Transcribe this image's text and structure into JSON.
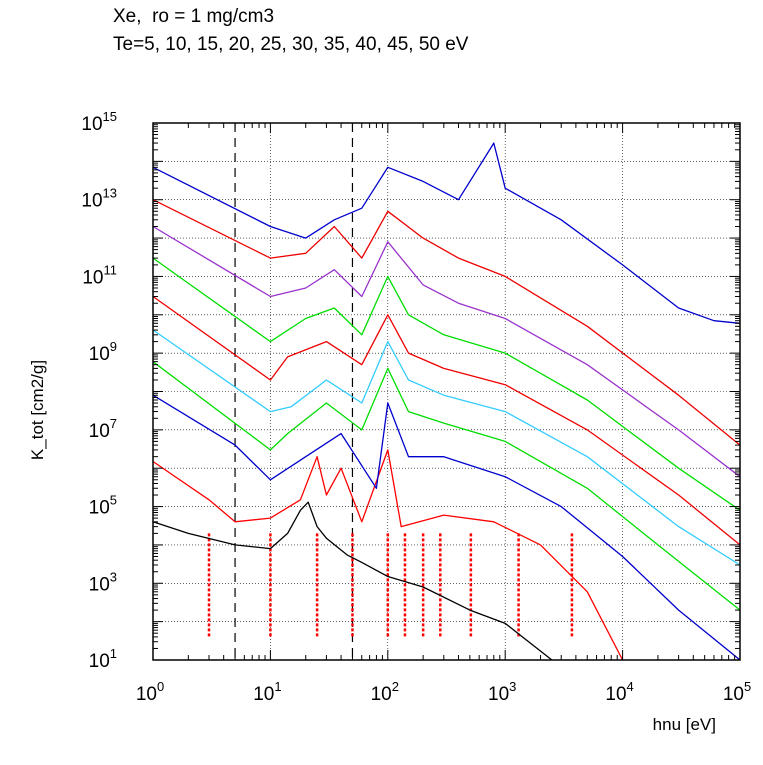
{
  "chart_data": {
    "type": "line",
    "title_lines": [
      "Xe,  ro = 1 mg/cm3",
      "Te=5, 10, 15, 20, 25, 30, 35, 40, 45, 50 eV"
    ],
    "xlabel": "hnu [eV]",
    "ylabel": "K_tot [cm2/g]",
    "xscale": "log",
    "yscale": "log",
    "xlim": [
      1,
      100000
    ],
    "ylim": [
      10,
      1000000000000000.0
    ],
    "x_tick_labels": [
      {
        "base": "10",
        "exp": "0",
        "value": 1
      },
      {
        "base": "10",
        "exp": "1",
        "value": 10
      },
      {
        "base": "10",
        "exp": "2",
        "value": 100
      },
      {
        "base": "10",
        "exp": "3",
        "value": 1000
      },
      {
        "base": "10",
        "exp": "4",
        "value": 10000
      },
      {
        "base": "10",
        "exp": "5",
        "value": 100000
      }
    ],
    "y_tick_labels": [
      {
        "base": "10",
        "exp": "1",
        "value": 10
      },
      {
        "base": "10",
        "exp": "3",
        "value": 1000
      },
      {
        "base": "10",
        "exp": "5",
        "value": 100000
      },
      {
        "base": "10",
        "exp": "7",
        "value": 10000000
      },
      {
        "base": "10",
        "exp": "9",
        "value": 1000000000
      },
      {
        "base": "10",
        "exp": "11",
        "value": 100000000000
      },
      {
        "base": "10",
        "exp": "13",
        "value": 10000000000000
      },
      {
        "base": "10",
        "exp": "15",
        "value": 1000000000000000
      }
    ],
    "grid": true,
    "dashed_vertical_lines_x": [
      5,
      50
    ],
    "dotted_red_vertical_lines_x": [
      3,
      10,
      25,
      50,
      100,
      140,
      200,
      280,
      510,
      1300,
      3700
    ],
    "dotted_red_lines_y_range": [
      40,
      20000
    ],
    "series": [
      {
        "color": "#000000",
        "values": [
          [
            1,
            40000
          ],
          [
            2,
            20000
          ],
          [
            5,
            10000
          ],
          [
            10,
            8000
          ],
          [
            14,
            20000
          ],
          [
            18,
            80000
          ],
          [
            21,
            130000
          ],
          [
            25,
            30000
          ],
          [
            30,
            15000
          ],
          [
            45,
            5500
          ],
          [
            60,
            3500
          ],
          [
            100,
            1500
          ],
          [
            200,
            800
          ],
          [
            500,
            200
          ],
          [
            1000,
            90
          ],
          [
            2500,
            10
          ]
        ]
      },
      {
        "color": "#ff0000",
        "values": [
          [
            1,
            1500000
          ],
          [
            3,
            150000
          ],
          [
            5,
            40000
          ],
          [
            10,
            50000
          ],
          [
            18,
            150000
          ],
          [
            25,
            2000000
          ],
          [
            30,
            200000
          ],
          [
            40,
            1000000
          ],
          [
            60,
            40000
          ],
          [
            100,
            3000000
          ],
          [
            130,
            30000
          ],
          [
            300,
            60000
          ],
          [
            800,
            40000
          ],
          [
            2000,
            10000
          ],
          [
            5000,
            600
          ],
          [
            10000,
            10
          ]
        ]
      },
      {
        "color": "#0000cc",
        "values": [
          [
            1,
            80000000
          ],
          [
            5,
            4000000
          ],
          [
            10,
            500000
          ],
          [
            20,
            2000000
          ],
          [
            40,
            8000000
          ],
          [
            80,
            300000
          ],
          [
            100,
            50000000
          ],
          [
            150,
            2000000
          ],
          [
            300,
            2000000
          ],
          [
            1000,
            600000
          ],
          [
            3000,
            100000
          ],
          [
            10000,
            5000
          ],
          [
            30000,
            200
          ],
          [
            100000,
            10
          ]
        ]
      },
      {
        "color": "#00dd00",
        "values": [
          [
            1,
            600000000
          ],
          [
            10,
            3000000
          ],
          [
            14,
            8000000
          ],
          [
            30,
            50000000
          ],
          [
            60,
            10000000
          ],
          [
            100,
            400000000
          ],
          [
            150,
            30000000
          ],
          [
            300,
            15000000
          ],
          [
            1000,
            5000000
          ],
          [
            5000,
            300000
          ],
          [
            20000,
            10000
          ],
          [
            100000,
            200
          ]
        ]
      },
      {
        "color": "#33ccff",
        "values": [
          [
            1,
            4000000000
          ],
          [
            10,
            30000000
          ],
          [
            15,
            40000000
          ],
          [
            30,
            200000000
          ],
          [
            60,
            50000000
          ],
          [
            100,
            2000000000
          ],
          [
            150,
            200000000
          ],
          [
            300,
            80000000
          ],
          [
            1000,
            30000000
          ],
          [
            5000,
            2000000
          ],
          [
            30000,
            30000
          ],
          [
            100000,
            3000
          ]
        ]
      },
      {
        "color": "#ee0000",
        "values": [
          [
            1,
            30000000000
          ],
          [
            10,
            200000000
          ],
          [
            14,
            800000000
          ],
          [
            30,
            2000000000
          ],
          [
            60,
            500000000
          ],
          [
            100,
            10000000000
          ],
          [
            150,
            1000000000
          ],
          [
            300,
            400000000
          ],
          [
            1000,
            150000000
          ],
          [
            5000,
            10000000
          ],
          [
            30000,
            200000
          ],
          [
            100000,
            10000
          ]
        ]
      },
      {
        "color": "#00dd00",
        "values": [
          [
            1,
            300000000000
          ],
          [
            10,
            2000000000
          ],
          [
            20,
            8000000000
          ],
          [
            35,
            15000000000
          ],
          [
            60,
            3000000000
          ],
          [
            100,
            100000000000
          ],
          [
            150,
            10000000000
          ],
          [
            300,
            3000000000
          ],
          [
            1000,
            1000000000
          ],
          [
            5000,
            60000000
          ],
          [
            30000,
            1000000
          ],
          [
            100000,
            80000
          ]
        ]
      },
      {
        "color": "#9933cc",
        "values": [
          [
            1,
            2000000000000
          ],
          [
            10,
            30000000000
          ],
          [
            20,
            50000000000
          ],
          [
            35,
            150000000000
          ],
          [
            60,
            30000000000
          ],
          [
            100,
            800000000000
          ],
          [
            200,
            60000000000
          ],
          [
            400,
            20000000000
          ],
          [
            1000,
            8000000000
          ],
          [
            5000,
            500000000
          ],
          [
            30000,
            10000000
          ],
          [
            100000,
            600000
          ]
        ]
      },
      {
        "color": "#ee0000",
        "values": [
          [
            1,
            10000000000000
          ],
          [
            10,
            300000000000
          ],
          [
            20,
            400000000000
          ],
          [
            35,
            2000000000000
          ],
          [
            60,
            300000000000
          ],
          [
            100,
            5000000000000
          ],
          [
            200,
            1000000000000
          ],
          [
            400,
            300000000000
          ],
          [
            1000,
            100000000000
          ],
          [
            5000,
            5000000000
          ],
          [
            30000,
            80000000
          ],
          [
            100000,
            4000000
          ]
        ]
      },
      {
        "color": "#0000cc",
        "values": [
          [
            1,
            70000000000000
          ],
          [
            10,
            2000000000000
          ],
          [
            20,
            1000000000000
          ],
          [
            35,
            3000000000000
          ],
          [
            60,
            6000000000000
          ],
          [
            100,
            70000000000000
          ],
          [
            200,
            30000000000000
          ],
          [
            400,
            10000000000000
          ],
          [
            800,
            300000000000000
          ],
          [
            1000,
            20000000000000
          ],
          [
            3000,
            3000000000000
          ],
          [
            10000,
            200000000000
          ],
          [
            30000,
            15000000000
          ],
          [
            60000,
            7000000000
          ],
          [
            100000,
            6000000000
          ]
        ]
      }
    ]
  }
}
